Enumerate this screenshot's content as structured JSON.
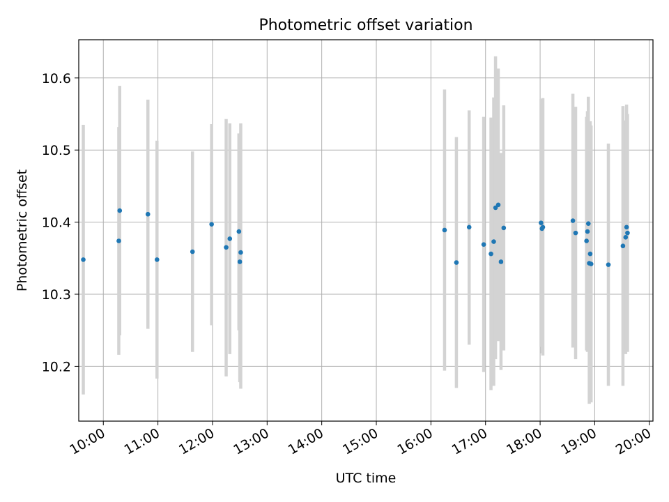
{
  "chart_data": {
    "type": "scatter",
    "title": "Photometric offset variation",
    "xlabel": "UTC time",
    "ylabel": "Photometric offset",
    "xlim": [
      "09:33",
      "20:04"
    ],
    "ylim": [
      10.124,
      10.653
    ],
    "x_ticks": [
      "10:00",
      "11:00",
      "12:00",
      "13:00",
      "14:00",
      "15:00",
      "16:00",
      "17:00",
      "18:00",
      "19:00",
      "20:00"
    ],
    "y_ticks": [
      10.2,
      10.3,
      10.4,
      10.5,
      10.6
    ],
    "y_tick_labels": [
      "10.2",
      "10.3",
      "10.4",
      "10.5",
      "10.6"
    ],
    "grid": true,
    "errorbar_color": "#d3d3d3",
    "marker_color": "#1f77b4",
    "points": [
      {
        "x": "09:38",
        "y": 10.348,
        "ylo": 10.161,
        "yhi": 10.535
      },
      {
        "x": "10:17",
        "y": 10.374,
        "ylo": 10.216,
        "yhi": 10.532
      },
      {
        "x": "10:18",
        "y": 10.416,
        "ylo": 10.243,
        "yhi": 10.589
      },
      {
        "x": "10:49",
        "y": 10.411,
        "ylo": 10.252,
        "yhi": 10.57
      },
      {
        "x": "10:59",
        "y": 10.348,
        "ylo": 10.183,
        "yhi": 10.513
      },
      {
        "x": "11:38",
        "y": 10.359,
        "ylo": 10.22,
        "yhi": 10.498
      },
      {
        "x": "11:59",
        "y": 10.397,
        "ylo": 10.257,
        "yhi": 10.536
      },
      {
        "x": "12:15",
        "y": 10.365,
        "ylo": 10.186,
        "yhi": 10.543
      },
      {
        "x": "12:19",
        "y": 10.377,
        "ylo": 10.217,
        "yhi": 10.537
      },
      {
        "x": "12:29",
        "y": 10.387,
        "ylo": 10.25,
        "yhi": 10.523
      },
      {
        "x": "12:30",
        "y": 10.345,
        "ylo": 10.178,
        "yhi": 10.512
      },
      {
        "x": "12:31",
        "y": 10.358,
        "ylo": 10.169,
        "yhi": 10.537
      },
      {
        "x": "16:15",
        "y": 10.389,
        "ylo": 10.194,
        "yhi": 10.584
      },
      {
        "x": "16:28",
        "y": 10.344,
        "ylo": 10.17,
        "yhi": 10.518
      },
      {
        "x": "16:42",
        "y": 10.393,
        "ylo": 10.23,
        "yhi": 10.555
      },
      {
        "x": "16:58",
        "y": 10.369,
        "ylo": 10.192,
        "yhi": 10.546
      },
      {
        "x": "17:06",
        "y": 10.356,
        "ylo": 10.167,
        "yhi": 10.545
      },
      {
        "x": "17:09",
        "y": 10.373,
        "ylo": 10.173,
        "yhi": 10.573
      },
      {
        "x": "17:11",
        "y": 10.42,
        "ylo": 10.21,
        "yhi": 10.63
      },
      {
        "x": "17:14",
        "y": 10.424,
        "ylo": 10.235,
        "yhi": 10.613
      },
      {
        "x": "17:17",
        "y": 10.345,
        "ylo": 10.195,
        "yhi": 10.496
      },
      {
        "x": "17:20",
        "y": 10.392,
        "ylo": 10.222,
        "yhi": 10.562
      },
      {
        "x": "18:01",
        "y": 10.399,
        "ylo": 10.227,
        "yhi": 10.571
      },
      {
        "x": "18:02",
        "y": 10.391,
        "ylo": 10.218,
        "yhi": 10.564
      },
      {
        "x": "18:03",
        "y": 10.393,
        "ylo": 10.215,
        "yhi": 10.572
      },
      {
        "x": "18:36",
        "y": 10.402,
        "ylo": 10.226,
        "yhi": 10.578
      },
      {
        "x": "18:39",
        "y": 10.385,
        "ylo": 10.21,
        "yhi": 10.56
      },
      {
        "x": "18:51",
        "y": 10.374,
        "ylo": 10.222,
        "yhi": 10.546
      },
      {
        "x": "18:52",
        "y": 10.387,
        "ylo": 10.22,
        "yhi": 10.554
      },
      {
        "x": "18:53",
        "y": 10.398,
        "ylo": 10.222,
        "yhi": 10.574
      },
      {
        "x": "18:54",
        "y": 10.343,
        "ylo": 10.148,
        "yhi": 10.538
      },
      {
        "x": "18:55",
        "y": 10.356,
        "ylo": 10.173,
        "yhi": 10.54
      },
      {
        "x": "18:56",
        "y": 10.342,
        "ylo": 10.15,
        "yhi": 10.534
      },
      {
        "x": "19:15",
        "y": 10.341,
        "ylo": 10.173,
        "yhi": 10.509
      },
      {
        "x": "19:31",
        "y": 10.367,
        "ylo": 10.173,
        "yhi": 10.561
      },
      {
        "x": "19:34",
        "y": 10.379,
        "ylo": 10.217,
        "yhi": 10.541
      },
      {
        "x": "19:35",
        "y": 10.393,
        "ylo": 10.223,
        "yhi": 10.563
      },
      {
        "x": "19:36",
        "y": 10.385,
        "ylo": 10.22,
        "yhi": 10.55
      }
    ]
  }
}
